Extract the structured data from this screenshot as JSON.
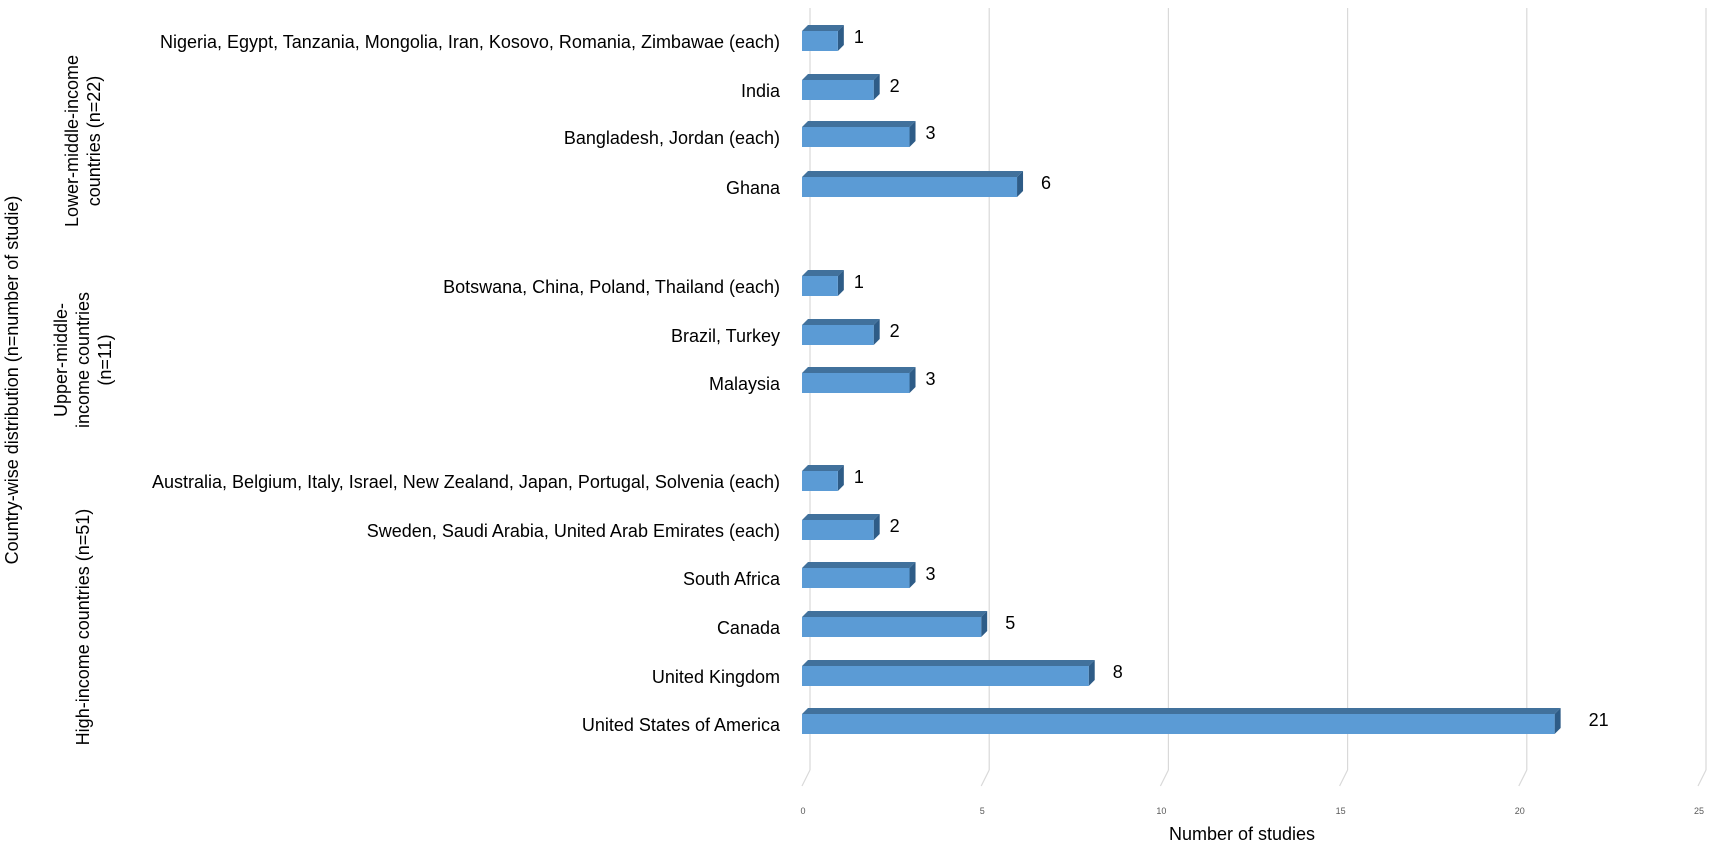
{
  "chart_data": {
    "type": "bar",
    "orientation": "horizontal",
    "style": "3d-bar",
    "xlabel": "Number of studies",
    "ylabel": "Country-wise distribution (n=number of studie)",
    "xlim": [
      0,
      25
    ],
    "xticks": [
      "0",
      "5",
      "10",
      "15",
      "20",
      "25"
    ],
    "grid": true,
    "bar_color": "#5B9BD5",
    "groups": [
      {
        "label": "Lower-middle-income countries (n=22)",
        "label_lines": [
          "Lower-middle-income",
          "countries (n=22)"
        ],
        "categories": [
          "Nigeria, Egypt, Tanzania, Mongolia, Iran, Kosovo, Romania, Zimbawae (each)",
          "India",
          "Bangladesh, Jordan (each)",
          "Ghana"
        ],
        "values": [
          1,
          2,
          3,
          6
        ],
        "value_labels": [
          "1",
          "2",
          "3",
          "6"
        ]
      },
      {
        "label": "Upper-middle-income countries (n=11)",
        "label_lines": [
          "Upper-middle-",
          "income countries",
          "(n=11)"
        ],
        "categories": [
          "Botswana, China, Poland, Thailand (each)",
          "Brazil, Turkey",
          "Malaysia"
        ],
        "values": [
          1,
          2,
          3
        ],
        "value_labels": [
          "1",
          "2",
          "3"
        ]
      },
      {
        "label": "High-income countries (n=51)",
        "label_lines": [
          "High-income countries (n=51)"
        ],
        "categories": [
          "Australia, Belgium, Italy, Israel, New Zealand, Japan, Portugal, Solvenia (each)",
          "Sweden, Saudi Arabia, United Arab Emirates (each)",
          "South Africa",
          "Canada",
          "United Kingdom",
          "United States of America"
        ],
        "values": [
          1,
          2,
          3,
          5,
          8,
          21
        ],
        "value_labels": [
          "1",
          "2",
          "3",
          "5",
          "8",
          "21"
        ]
      }
    ]
  }
}
